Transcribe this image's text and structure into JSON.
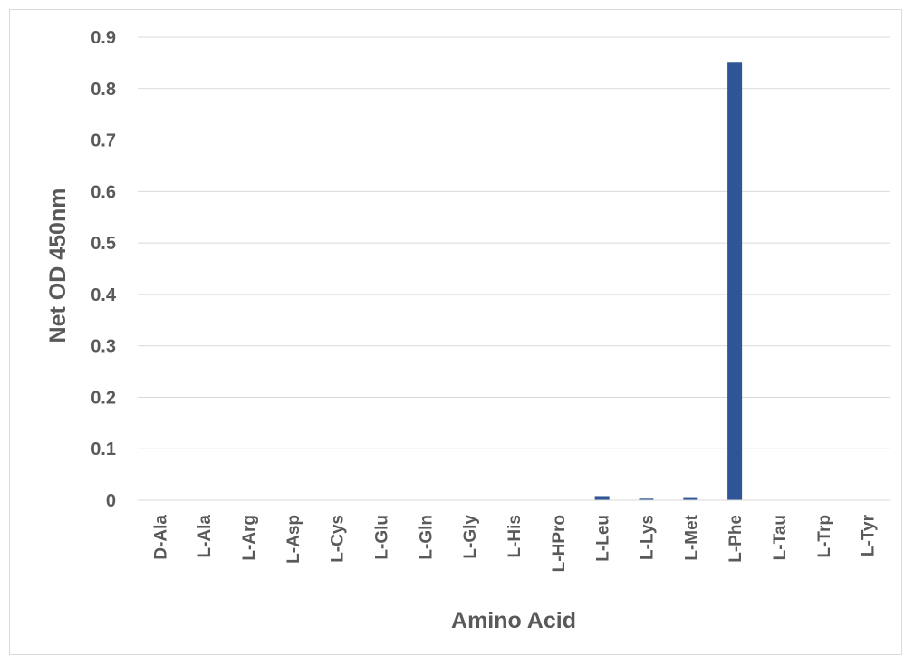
{
  "chart_data": {
    "type": "bar",
    "title": "",
    "xlabel": "Amino Acid",
    "ylabel": "Net OD 450nm",
    "categories": [
      "D-Ala",
      "L-Ala",
      "L-Arg",
      "L-Asp",
      "L-Cys",
      "L-Glu",
      "L-Gln",
      "L-Gly",
      "L-His",
      "L-HPro",
      "L-Leu",
      "L-Lys",
      "L-Met",
      "L-Phe",
      "L-Tau",
      "L-Trp",
      "L-Tyr"
    ],
    "values": [
      0,
      0,
      0,
      0,
      0,
      0,
      0,
      0,
      0,
      0,
      0.008,
      0.003,
      0.006,
      0.852,
      0,
      0,
      0
    ],
    "ylim": [
      0,
      0.9
    ],
    "yticks": [
      "0",
      "0.1",
      "0.2",
      "0.3",
      "0.4",
      "0.5",
      "0.6",
      "0.7",
      "0.8",
      "0.9"
    ],
    "grid": true,
    "legend": "none",
    "bar_color": "#2f5597"
  }
}
